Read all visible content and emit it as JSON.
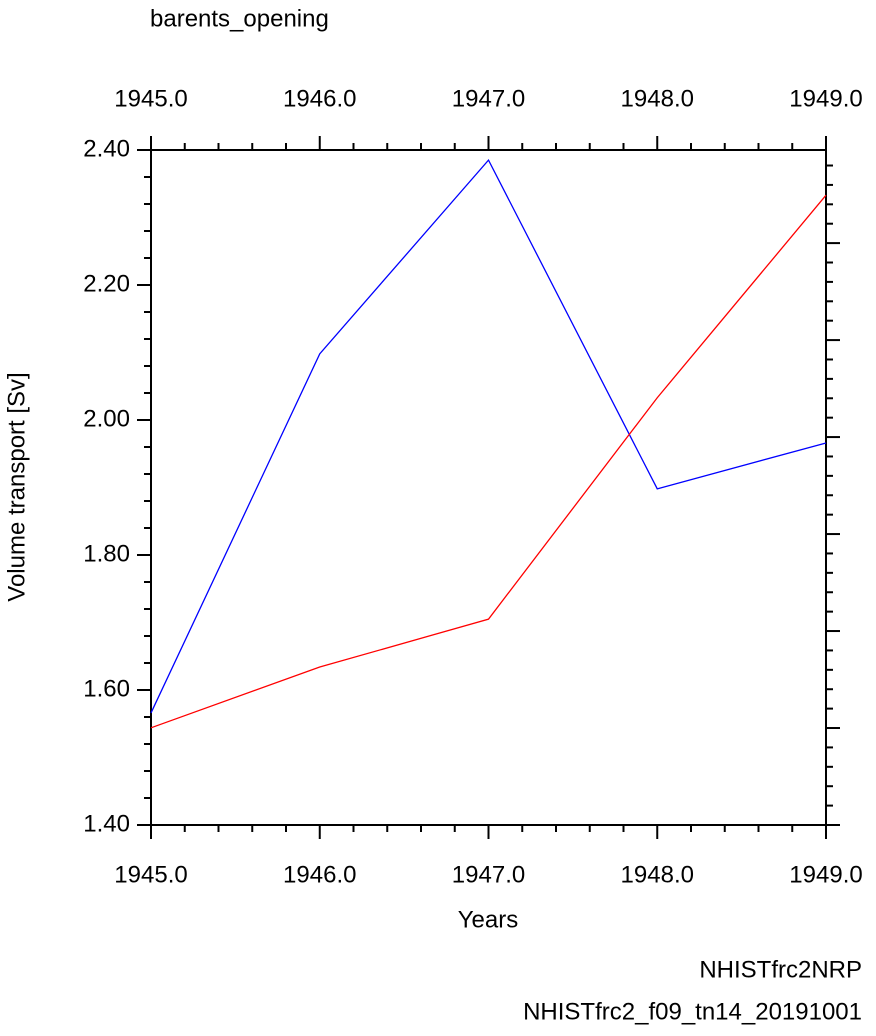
{
  "chart_data": {
    "type": "line",
    "title": "barents_opening",
    "xlabel": "Years",
    "ylabel": "Volume transport [Sv]",
    "x": [
      1945,
      1946,
      1947,
      1948,
      1949
    ],
    "series": [
      {
        "name": "NHISTfrc2NRP",
        "color": "#0000ff",
        "values": [
          1.566,
          2.098,
          2.385,
          1.898,
          1.966
        ]
      },
      {
        "name": "NHISTfrc2_f09_tn14_20191001",
        "color": "#ff0000",
        "values": [
          1.544,
          1.634,
          1.705,
          2.033,
          2.333
        ]
      }
    ],
    "xlim": [
      1945,
      1949
    ],
    "xticks": [
      {
        "value": 1945,
        "label": "1945.0"
      },
      {
        "value": 1946,
        "label": "1946.0"
      },
      {
        "value": 1947,
        "label": "1947.0"
      },
      {
        "value": 1948,
        "label": "1948.0"
      },
      {
        "value": 1949,
        "label": "1949.0"
      }
    ],
    "xtick_color": "#0000ff",
    "x2ticks": [
      {
        "value": 1945,
        "label": "1945.0"
      },
      {
        "value": 1946,
        "label": "1946.0"
      },
      {
        "value": 1947,
        "label": "1947.0"
      },
      {
        "value": 1948,
        "label": "1948.0"
      },
      {
        "value": 1949,
        "label": "1949.0"
      }
    ],
    "x2tick_color": "#ff0000",
    "ylim": [
      1.4,
      2.4
    ],
    "yticks": [
      {
        "value": 1.4,
        "label": "1.40"
      },
      {
        "value": 1.6,
        "label": "1.60"
      },
      {
        "value": 1.8,
        "label": "1.80"
      },
      {
        "value": 2.0,
        "label": "2.00"
      },
      {
        "value": 2.2,
        "label": "2.20"
      },
      {
        "value": 2.4,
        "label": "2.40"
      }
    ]
  }
}
